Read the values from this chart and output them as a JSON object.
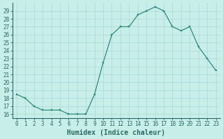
{
  "x": [
    0,
    1,
    2,
    3,
    4,
    5,
    6,
    7,
    8,
    9,
    10,
    11,
    12,
    13,
    14,
    15,
    16,
    17,
    18,
    19,
    20,
    21,
    22,
    23
  ],
  "y": [
    18.5,
    18.0,
    17.0,
    16.5,
    16.5,
    16.5,
    16.0,
    16.0,
    16.0,
    18.5,
    22.5,
    26.0,
    27.0,
    27.0,
    28.5,
    29.0,
    29.5,
    29.0,
    27.0,
    26.5,
    27.0,
    24.5,
    23.0,
    21.5
  ],
  "line_color": "#2d8b7a",
  "marker_color": "#2d8b7a",
  "bg_color": "#c8eeea",
  "grid_color": "#a8d8d2",
  "xlabel": "Humidex (Indice chaleur)",
  "xlim": [
    -0.5,
    23.5
  ],
  "ylim": [
    15.5,
    30.0
  ],
  "yticks": [
    16,
    17,
    18,
    19,
    20,
    21,
    22,
    23,
    24,
    25,
    26,
    27,
    28,
    29
  ],
  "ytick_labels": [
    "16",
    "17",
    "18",
    "19",
    "20",
    "21",
    "22",
    "23",
    "24",
    "25",
    "26",
    "27",
    "28",
    "29"
  ],
  "xticks": [
    0,
    1,
    2,
    3,
    4,
    5,
    6,
    7,
    8,
    9,
    10,
    11,
    12,
    13,
    14,
    15,
    16,
    17,
    18,
    19,
    20,
    21,
    22,
    23
  ],
  "xtick_labels": [
    "0",
    "1",
    "2",
    "3",
    "4",
    "5",
    "6",
    "7",
    "8",
    "9",
    "10",
    "11",
    "12",
    "13",
    "14",
    "15",
    "16",
    "17",
    "18",
    "19",
    "20",
    "21",
    "22",
    "23"
  ],
  "tick_fontsize": 5.5,
  "xlabel_fontsize": 7.0,
  "marker_size": 2.0,
  "linewidth": 0.9
}
